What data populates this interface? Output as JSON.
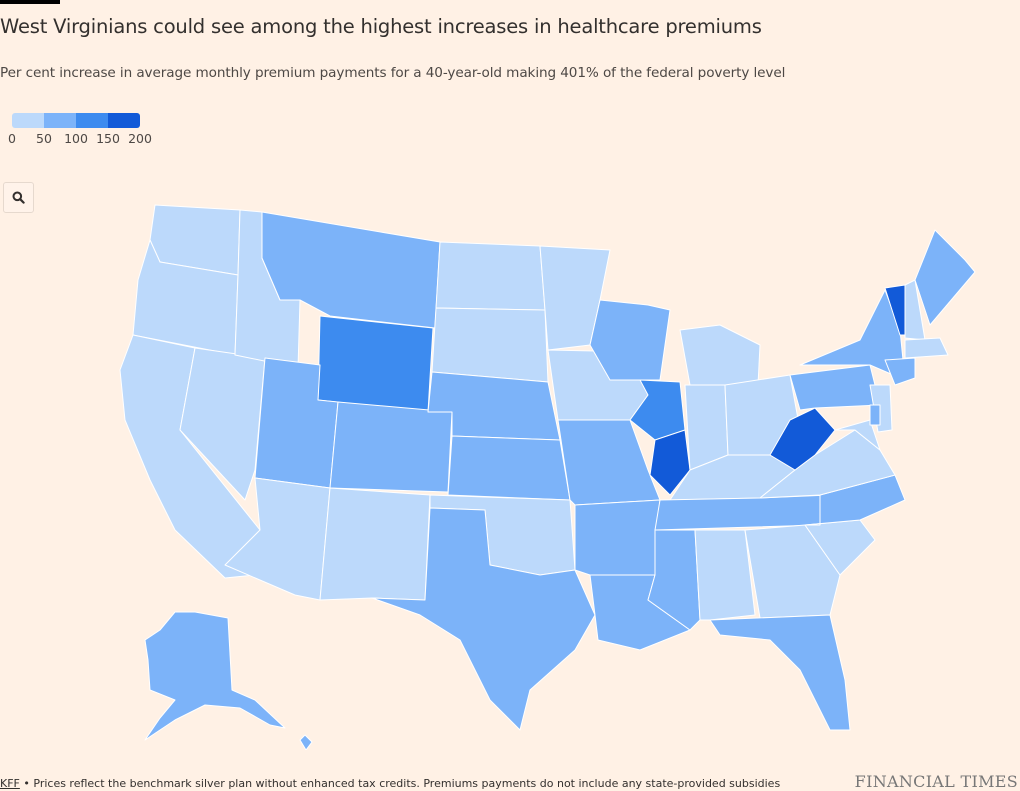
{
  "header": {
    "title": "West Virginians could see among the highest increases in healthcare premiums",
    "subtitle": "Per cent increase in average monthly premium payments for a 40-year-old making 401% of the federal poverty level"
  },
  "controls": {
    "zoom_icon": "search-icon"
  },
  "footer": {
    "source_link": "KFF",
    "separator": "•",
    "note": "Prices reflect the benchmark silver plan without enhanced tax credits. Premiums payments do not include any state-provided subsidies",
    "brand": "FINANCIAL TIMES"
  },
  "chart_data": {
    "type": "choropleth",
    "title": "West Virginians could see among the highest increases in healthcare premiums",
    "subtitle": "Per cent increase in average monthly premium payments for a 40-year-old making 401% of the federal poverty level",
    "unit": "per cent increase",
    "geography": "US health insurance rating areas",
    "legend": {
      "placement": "top-left",
      "ticks": [
        "0",
        "50",
        "100",
        "150",
        "200"
      ],
      "bins": [
        {
          "range": [
            0,
            50
          ],
          "color": "#bcd9fb"
        },
        {
          "range": [
            50,
            100
          ],
          "color": "#7cb3f9"
        },
        {
          "range": [
            100,
            150
          ],
          "color": "#3d8bef"
        },
        {
          "range": [
            150,
            200
          ],
          "color": "#125ad8"
        }
      ]
    },
    "regions": [
      {
        "name": "Washington",
        "bin": 0
      },
      {
        "name": "Oregon",
        "bin": 0
      },
      {
        "name": "California",
        "bin": 0
      },
      {
        "name": "Nevada",
        "bin": 0
      },
      {
        "name": "Idaho",
        "bin": 0
      },
      {
        "name": "Montana",
        "bin": 1
      },
      {
        "name": "Wyoming",
        "bin": 2
      },
      {
        "name": "Utah",
        "bin": 1
      },
      {
        "name": "Colorado",
        "bin": 1
      },
      {
        "name": "Arizona",
        "bin": 0
      },
      {
        "name": "New Mexico",
        "bin": 0
      },
      {
        "name": "North Dakota",
        "bin": 0
      },
      {
        "name": "South Dakota",
        "bin": 0
      },
      {
        "name": "Nebraska",
        "bin": 1
      },
      {
        "name": "Kansas",
        "bin": 1
      },
      {
        "name": "Oklahoma",
        "bin": 0
      },
      {
        "name": "Texas",
        "bin": 1
      },
      {
        "name": "Minnesota",
        "bin": 0
      },
      {
        "name": "Iowa",
        "bin": 0
      },
      {
        "name": "Missouri",
        "bin": 1
      },
      {
        "name": "Arkansas",
        "bin": 1
      },
      {
        "name": "Louisiana",
        "bin": 1
      },
      {
        "name": "Wisconsin",
        "bin": 1
      },
      {
        "name": "Illinois (north)",
        "bin": 2
      },
      {
        "name": "Illinois (south)",
        "bin": 3
      },
      {
        "name": "Michigan",
        "bin": 0
      },
      {
        "name": "Indiana",
        "bin": 0
      },
      {
        "name": "Ohio",
        "bin": 0
      },
      {
        "name": "Kentucky",
        "bin": 0
      },
      {
        "name": "Tennessee",
        "bin": 1
      },
      {
        "name": "Mississippi",
        "bin": 1
      },
      {
        "name": "Alabama",
        "bin": 0
      },
      {
        "name": "Georgia",
        "bin": 0
      },
      {
        "name": "Florida",
        "bin": 1
      },
      {
        "name": "South Carolina",
        "bin": 0
      },
      {
        "name": "North Carolina",
        "bin": 1
      },
      {
        "name": "Virginia",
        "bin": 0
      },
      {
        "name": "West Virginia",
        "bin": 3
      },
      {
        "name": "Pennsylvania",
        "bin": 1
      },
      {
        "name": "New York",
        "bin": 1
      },
      {
        "name": "Vermont",
        "bin": 3
      },
      {
        "name": "New Hampshire",
        "bin": 0
      },
      {
        "name": "Maine",
        "bin": 1
      },
      {
        "name": "Massachusetts",
        "bin": 0
      },
      {
        "name": "Connecticut",
        "bin": 1
      },
      {
        "name": "New Jersey",
        "bin": 0
      },
      {
        "name": "Maryland",
        "bin": 0
      },
      {
        "name": "Delaware",
        "bin": 1
      },
      {
        "name": "Alaska",
        "bin": 1
      },
      {
        "name": "Hawaii",
        "bin": 1
      }
    ]
  }
}
